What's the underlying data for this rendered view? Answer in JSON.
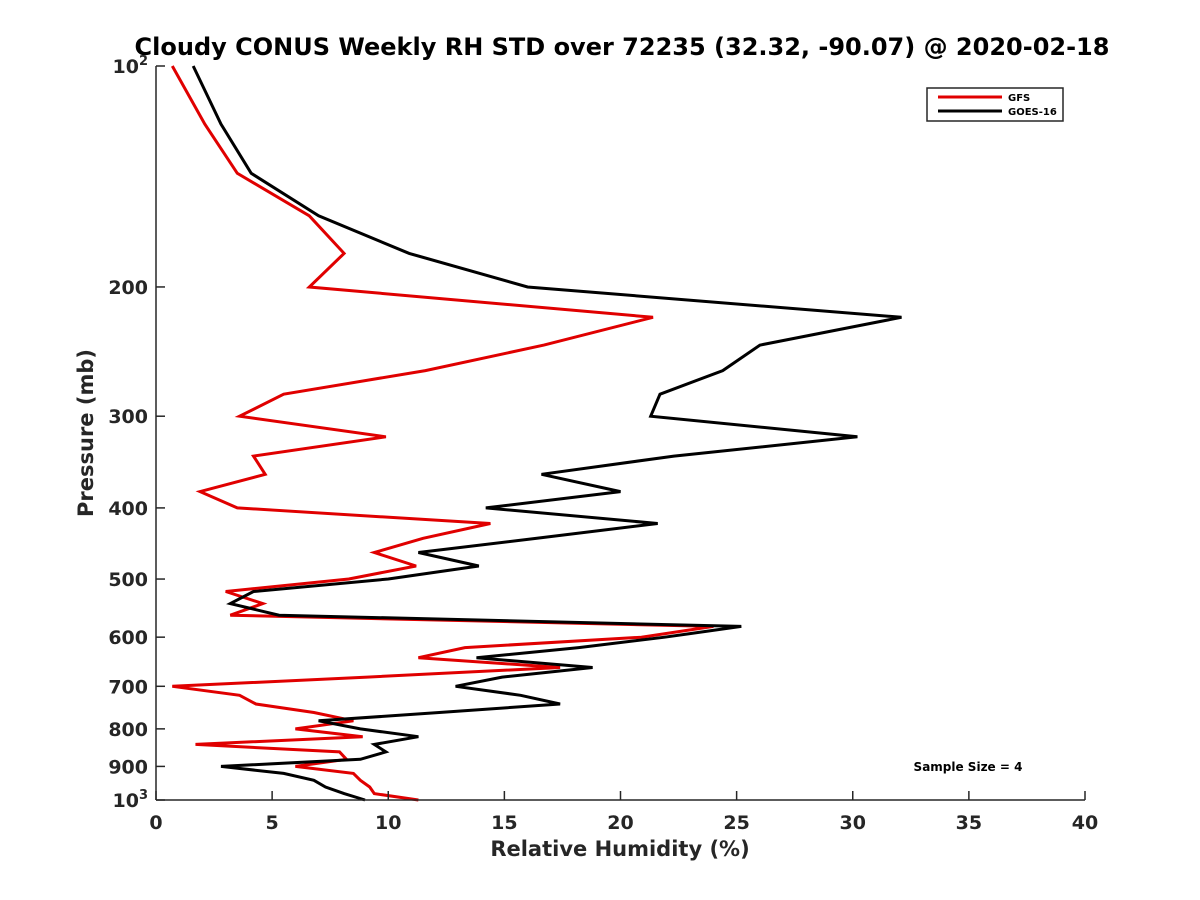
{
  "chart_data": {
    "type": "line",
    "title": "Cloudy CONUS Weekly RH STD over 72235 (32.32, -90.07) @ 2020-02-18",
    "xlabel": "Relative Humidity (%)",
    "ylabel": "Pressure (mb)",
    "xlim": [
      0,
      40
    ],
    "ylim": [
      100,
      1000
    ],
    "yscale": "log",
    "yaxis_reversed": true,
    "grid": false,
    "legend_position": "top-right",
    "x_ticks": [
      0,
      5,
      10,
      15,
      20,
      25,
      30,
      35,
      40
    ],
    "y_ticks": [
      {
        "value": 100,
        "label": "10",
        "sup": "2"
      },
      {
        "value": 200,
        "label": "200",
        "sup": ""
      },
      {
        "value": 300,
        "label": "300",
        "sup": ""
      },
      {
        "value": 400,
        "label": "400",
        "sup": ""
      },
      {
        "value": 500,
        "label": "500",
        "sup": ""
      },
      {
        "value": 600,
        "label": "600",
        "sup": ""
      },
      {
        "value": 700,
        "label": "700",
        "sup": ""
      },
      {
        "value": 800,
        "label": "800",
        "sup": ""
      },
      {
        "value": 900,
        "label": "900",
        "sup": ""
      },
      {
        "value": 1000,
        "label": "10",
        "sup": "3"
      }
    ],
    "pressure_levels": [
      100,
      120,
      140,
      160,
      180,
      200,
      220,
      240,
      260,
      280,
      300,
      320,
      340,
      360,
      380,
      400,
      420,
      440,
      460,
      480,
      500,
      520,
      540,
      560,
      580,
      600,
      620,
      640,
      660,
      680,
      700,
      720,
      740,
      760,
      780,
      800,
      820,
      840,
      860,
      880,
      900,
      920,
      940,
      960,
      980,
      1000
    ],
    "series": [
      {
        "name": "GFS",
        "color": "#e00000",
        "values": [
          0.7,
          2.1,
          3.5,
          6.6,
          8.1,
          6.6,
          21.4,
          16.7,
          11.6,
          5.5,
          3.6,
          9.9,
          4.2,
          4.7,
          1.9,
          3.5,
          14.4,
          11.5,
          9.4,
          11.2,
          8.3,
          3.0,
          4.6,
          3.2,
          24.0,
          20.9,
          13.3,
          11.3,
          17.4,
          9.1,
          0.7,
          3.6,
          4.3,
          6.8,
          8.5,
          6.0,
          8.9,
          1.7,
          7.9,
          8.2,
          6.0,
          8.5,
          8.8,
          9.2,
          9.4,
          11.3
        ]
      },
      {
        "name": "GOES-16",
        "color": "#000000",
        "values": [
          1.6,
          2.8,
          4.1,
          7.0,
          10.9,
          16.0,
          32.1,
          26.0,
          24.4,
          21.7,
          21.3,
          30.2,
          22.3,
          16.6,
          20.0,
          14.2,
          21.6,
          16.4,
          11.3,
          13.9,
          10.0,
          4.2,
          3.2,
          5.3,
          25.2,
          21.9,
          18.2,
          13.8,
          18.8,
          14.9,
          12.9,
          15.7,
          17.4,
          12.2,
          7.0,
          8.8,
          11.3,
          9.4,
          9.9,
          8.8,
          2.8,
          5.5,
          6.8,
          7.3,
          8.1,
          9.0
        ]
      }
    ],
    "annotations": [
      "Sample Size = 4"
    ]
  }
}
